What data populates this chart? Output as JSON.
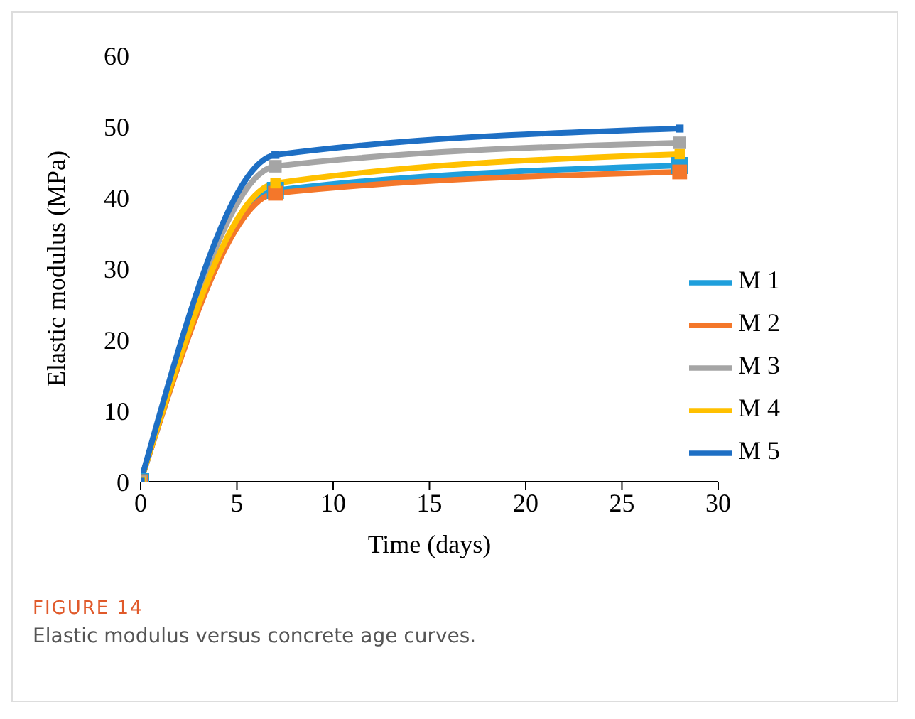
{
  "chart_data": {
    "type": "line",
    "title": "FIGURE 14",
    "subtitle": "Elastic modulus versus concrete age curves.",
    "xlabel": "Time (days)",
    "ylabel": "Elastic modulus (MPa)",
    "x": [
      0,
      7,
      28
    ],
    "series": [
      {
        "name": "M 1",
        "color": "#1f9fdc",
        "values": [
          0,
          41,
          44.5
        ]
      },
      {
        "name": "M 2",
        "color": "#f4772a",
        "values": [
          0,
          40.6,
          43.6
        ]
      },
      {
        "name": "M 3",
        "color": "#a5a5a5",
        "values": [
          0,
          44.4,
          47.7
        ]
      },
      {
        "name": "M 4",
        "color": "#ffc000",
        "values": [
          0,
          42,
          46.1
        ]
      },
      {
        "name": "M 5",
        "color": "#1e6fc4",
        "values": [
          0,
          46,
          49.7
        ]
      }
    ],
    "xlim": [
      0,
      30
    ],
    "xticks": [
      0,
      5,
      10,
      15,
      20,
      25,
      30
    ],
    "ylim": [
      0,
      60
    ],
    "yticks": [
      0,
      10,
      20,
      30,
      40,
      50,
      60
    ],
    "grid": false,
    "legend": "right",
    "marker": "square",
    "line_style": "solid"
  }
}
